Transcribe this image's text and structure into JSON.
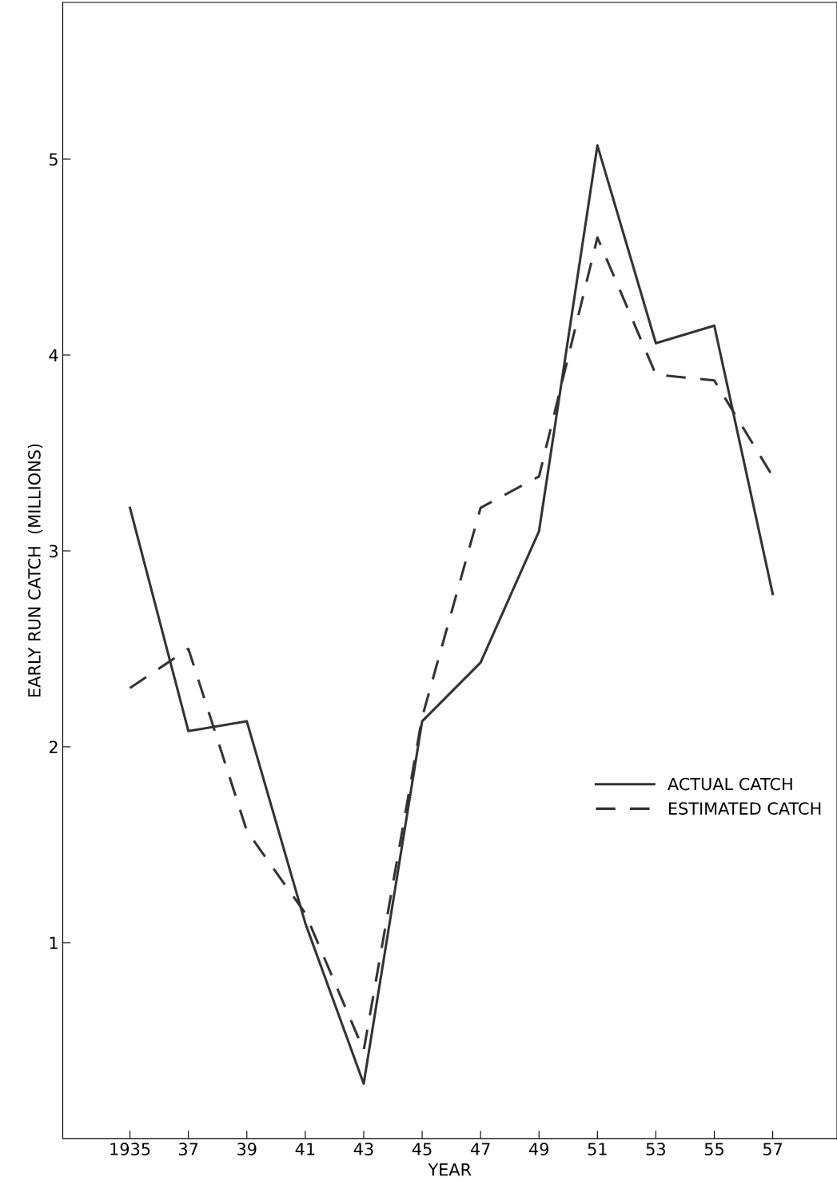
{
  "chart_data": {
    "type": "line",
    "xlabel": "YEAR",
    "ylabel": "EARLY RUN CATCH  (MILLIONS)",
    "x": [
      1935,
      1937,
      1939,
      1941,
      1943,
      1945,
      1947,
      1949,
      1951,
      1953,
      1955,
      1957
    ],
    "series": [
      {
        "name": "ACTUAL CATCH",
        "color": "#333333",
        "line_style": "solid",
        "values": [
          3.22,
          2.08,
          2.13,
          1.1,
          0.28,
          2.13,
          2.43,
          3.1,
          5.07,
          4.06,
          4.15,
          2.78
        ]
      },
      {
        "name": "ESTIMATED CATCH",
        "color": "#333333",
        "line_style": "dashed",
        "values": [
          2.3,
          2.5,
          1.57,
          1.15,
          0.45,
          2.15,
          3.22,
          3.38,
          4.6,
          3.9,
          3.87,
          3.38
        ]
      }
    ],
    "xlim": [
      1932.7,
      1959.2
    ],
    "ylim": [
      0,
      5.8
    ],
    "xticks": [
      {
        "value": 1935,
        "label": "1935"
      },
      {
        "value": 1937,
        "label": "37"
      },
      {
        "value": 1939,
        "label": "39"
      },
      {
        "value": 1941,
        "label": "41"
      },
      {
        "value": 1943,
        "label": "43"
      },
      {
        "value": 1945,
        "label": "45"
      },
      {
        "value": 1947,
        "label": "47"
      },
      {
        "value": 1949,
        "label": "49"
      },
      {
        "value": 1951,
        "label": "51"
      },
      {
        "value": 1953,
        "label": "53"
      },
      {
        "value": 1955,
        "label": "55"
      },
      {
        "value": 1957,
        "label": "57"
      }
    ],
    "yticks": [
      1,
      2,
      3,
      4,
      5
    ],
    "grid": false,
    "legend": "right",
    "marker": "none"
  }
}
